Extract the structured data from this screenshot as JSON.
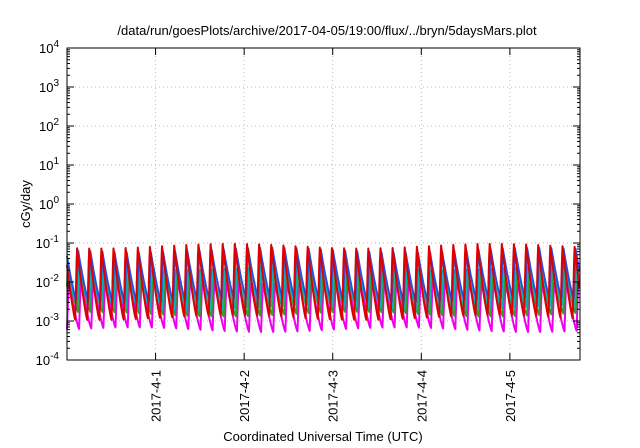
{
  "chart_data": {
    "type": "line",
    "title": "/data/run/goesPlots/archive/2017-04-05/19:00/flux/../bryn/5daysMars.plot",
    "xlabel": "Coordinated Universal Time (UTC)",
    "ylabel": "cGy/day",
    "y_scale": "log",
    "ylim": [
      0.0001,
      10000
    ],
    "y_ticks": [
      {
        "value": 0.0001,
        "base": "10",
        "exp": "-4"
      },
      {
        "value": 0.001,
        "base": "10",
        "exp": "-3"
      },
      {
        "value": 0.01,
        "base": "10",
        "exp": "-2"
      },
      {
        "value": 0.1,
        "base": "10",
        "exp": "-1"
      },
      {
        "value": 1,
        "base": "10",
        "exp": "0"
      },
      {
        "value": 10,
        "base": "10",
        "exp": "1"
      },
      {
        "value": 100,
        "base": "10",
        "exp": "2"
      },
      {
        "value": 1000,
        "base": "10",
        "exp": "3"
      },
      {
        "value": 10000,
        "base": "10",
        "exp": "4"
      }
    ],
    "xlim": [
      "2017-03-31T00:00",
      "2017-04-05T19:00"
    ],
    "x_ticks": [
      {
        "value": "2017-04-01T00:00",
        "label": "2017-4-1"
      },
      {
        "value": "2017-04-02T00:00",
        "label": "2017-4-2"
      },
      {
        "value": "2017-04-03T00:00",
        "label": "2017-4-3"
      },
      {
        "value": "2017-04-04T00:00",
        "label": "2017-4-4"
      },
      {
        "value": "2017-04-05T00:00",
        "label": "2017-4-5"
      }
    ],
    "grid": true,
    "legend": "none",
    "series": [
      {
        "color": "#dd0000",
        "peak": 0.09,
        "trough": 0.0012
      },
      {
        "color": "#2a4ee0",
        "peak": 0.07,
        "trough": 0.0035
      },
      {
        "color": "#00b8b8",
        "peak": 0.025,
        "trough": 0.0022
      },
      {
        "color": "#2ea02e",
        "peak": 0.02,
        "trough": 0.0015
      },
      {
        "color": "#ee00ee",
        "peak": 0.012,
        "trough": 0.0006
      }
    ],
    "cycles_per_day": 7.3
  }
}
